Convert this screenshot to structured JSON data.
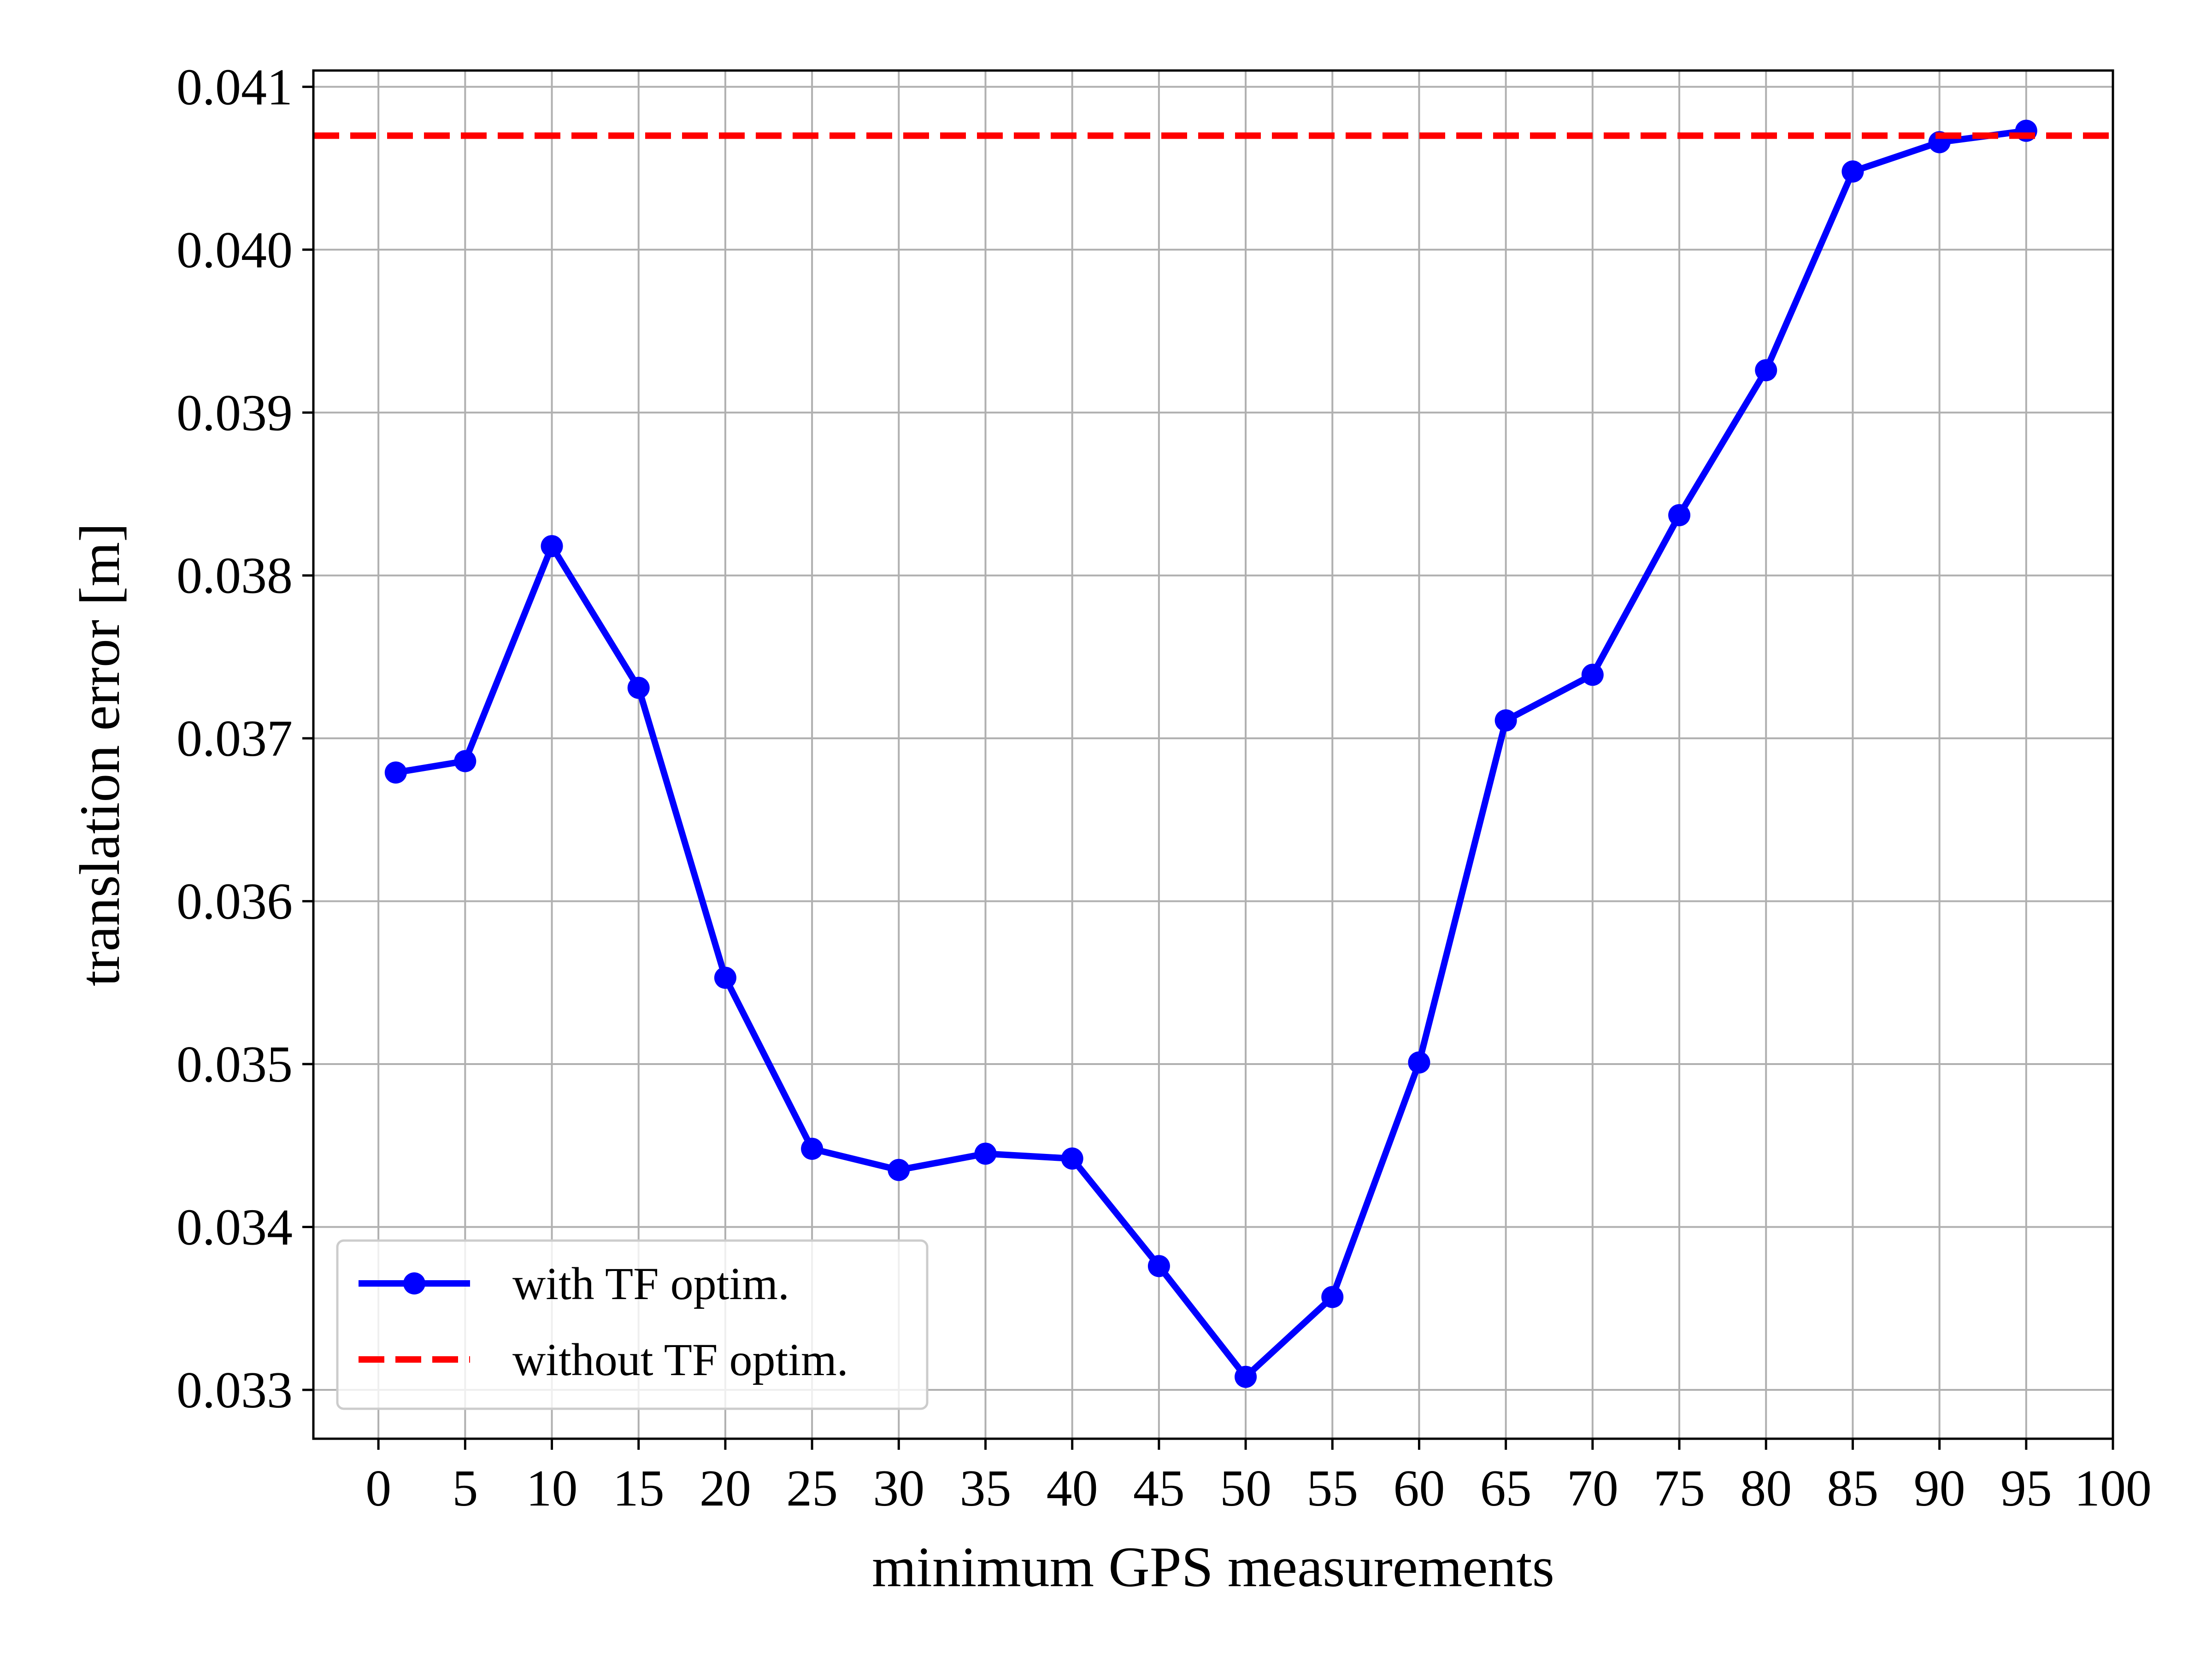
{
  "chart_data": {
    "type": "line",
    "title": "",
    "xlabel": "minimum GPS measurements",
    "ylabel": "translation error [m]",
    "xlim": [
      -3.75,
      100
    ],
    "ylim": [
      0.0327,
      0.0411
    ],
    "xticks": [
      0,
      5,
      10,
      15,
      20,
      25,
      30,
      35,
      40,
      45,
      50,
      55,
      60,
      65,
      70,
      75,
      80,
      85,
      90,
      95,
      100
    ],
    "xtick_labels": [
      "0",
      "5",
      "10",
      "15",
      "20",
      "25",
      "30",
      "35",
      "40",
      "45",
      "50",
      "55",
      "60",
      "65",
      "70",
      "75",
      "80",
      "85",
      "90",
      "95",
      "100"
    ],
    "yticks": [
      0.033,
      0.034,
      0.035,
      0.036,
      0.037,
      0.038,
      0.039,
      0.04,
      0.041
    ],
    "ytick_labels": [
      "0.033",
      "0.034",
      "0.035",
      "0.036",
      "0.037",
      "0.038",
      "0.039",
      "0.040",
      "0.041"
    ],
    "grid": true,
    "legend_position": "bottom-left",
    "series": [
      {
        "name": "with TF optim.",
        "color": "#0000ff",
        "style": "solid",
        "marker": "circle",
        "x": [
          1,
          5,
          10,
          15,
          20,
          25,
          30,
          35,
          40,
          45,
          50,
          55,
          60,
          65,
          70,
          75,
          80,
          85,
          90,
          95
        ],
        "values": [
          0.03679,
          0.03686,
          0.03818,
          0.03731,
          0.03553,
          0.03448,
          0.03435,
          0.03445,
          0.03442,
          0.03376,
          0.03308,
          0.03357,
          0.03501,
          0.03711,
          0.03739,
          0.03837,
          0.03926,
          0.04048,
          0.04066,
          0.04073
        ]
      },
      {
        "name": "without TF optim.",
        "color": "#ff0000",
        "style": "dashed",
        "marker": "none",
        "x": [
          -3.75,
          100
        ],
        "values": [
          0.0407,
          0.0407
        ]
      }
    ]
  }
}
